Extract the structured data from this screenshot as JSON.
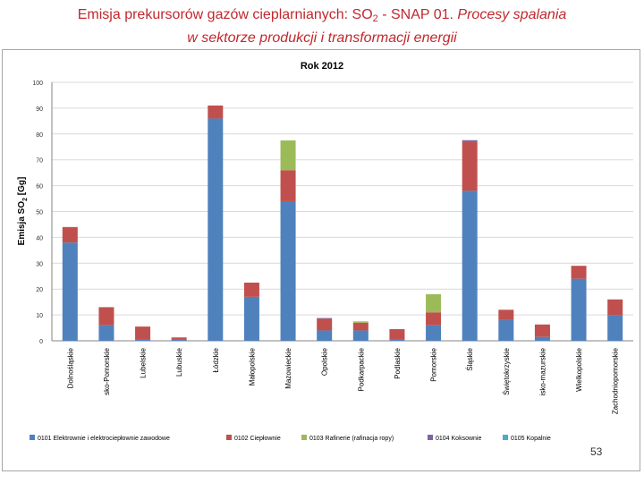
{
  "slide": {
    "title_a": "Emisja prekursorów gazów cieplarnianych:  SO",
    "title_sub": "2",
    "title_b": " - SNAP 01. ",
    "title_c": "Procesy spalania",
    "title_line2": "w sektorze produkcji i transformacji energii",
    "page_number": "53"
  },
  "chart_data": {
    "type": "bar",
    "stacked": true,
    "title": "Rok 2012",
    "ylabel": "Emisja SO",
    "ylabel_sub": "2",
    "ylabel_unit": " [Gg]",
    "ylim": [
      0,
      100
    ],
    "yticks": [
      0,
      10,
      20,
      30,
      40,
      50,
      60,
      70,
      80,
      90,
      100
    ],
    "grid": true,
    "legend_position": "bottom",
    "categories": [
      "Dolnośląskie",
      "sko-Pomorskie",
      "Lubelskie",
      "Lubuskie",
      "Łódzkie",
      "Małopolskie",
      "Mazowieckie",
      "Opolskie",
      "Podkarpackie",
      "Podlaskie",
      "Pomorskie",
      "Śląskie",
      "Świętokrzyskie",
      "isko-mazurskie",
      "Wielkopolskie",
      "Zachodniopomorskie"
    ],
    "series": [
      {
        "name": "0101  Elektrownie i elektrociepłownie zawodowe",
        "color": "#4f81bd",
        "values": [
          38,
          6,
          0.5,
          0.7,
          86,
          17,
          54,
          4,
          4,
          0.5,
          6,
          58,
          8,
          1.5,
          24,
          10
        ]
      },
      {
        "name": "0102  Ciepłownie",
        "color": "#c0504d",
        "values": [
          6,
          7,
          5,
          0.6,
          5,
          5.5,
          12,
          4.5,
          3,
          4,
          5,
          19,
          4,
          4.8,
          5,
          6
        ]
      },
      {
        "name": "0103  Rafinerie  (rafinacja ropy)",
        "color": "#9bbb59",
        "values": [
          0,
          0,
          0,
          0,
          0,
          0,
          11.5,
          0,
          0.5,
          0,
          7,
          0,
          0,
          0,
          0,
          0
        ]
      },
      {
        "name": "0104  Koksownie",
        "color": "#8064a2",
        "values": [
          0,
          0,
          0,
          0,
          0,
          0,
          0,
          0.3,
          0,
          0,
          0,
          0.6,
          0,
          0,
          0,
          0
        ]
      },
      {
        "name": "0105  Kopalnie",
        "color": "#4bacc6",
        "values": [
          0,
          0,
          0,
          0,
          0,
          0,
          0,
          0,
          0,
          0,
          0,
          0,
          0,
          0,
          0,
          0
        ]
      }
    ]
  }
}
